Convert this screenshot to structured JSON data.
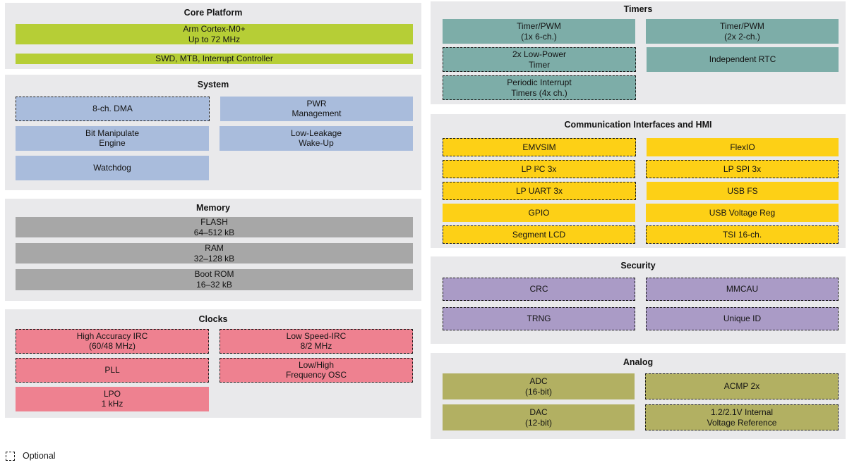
{
  "palette": {
    "green": "#b6ce36",
    "blue": "#a9bcdc",
    "gray": "#a7a7a7",
    "pink": "#ee8190",
    "teal": "#7dada8",
    "yellow": "#fdd016",
    "purple": "#aa9bc6",
    "olive": "#b2b062",
    "panel_bg": "#e9e9eb",
    "dash_border": "#1c1c1c"
  },
  "legend": {
    "label": "Optional"
  },
  "sections": {
    "core": {
      "title": "Core Platform",
      "blocks": [
        {
          "label": "Arm Cortex-M0+\nUp to 72 MHz",
          "optional": false
        },
        {
          "label": "SWD, MTB, Interrupt Controller",
          "optional": false
        }
      ]
    },
    "system": {
      "title": "System",
      "rows": [
        [
          {
            "label": "8-ch. DMA",
            "optional": true
          },
          {
            "label": "PWR\nManagement",
            "optional": false
          }
        ],
        [
          {
            "label": "Bit Manipulate\nEngine",
            "optional": false
          },
          {
            "label": "Low-Leakage\nWake-Up",
            "optional": false
          }
        ],
        [
          {
            "label": "Watchdog",
            "optional": false
          },
          null
        ]
      ]
    },
    "memory": {
      "title": "Memory",
      "blocks": [
        {
          "label": "FLASH\n64–512 kB",
          "optional": false
        },
        {
          "label": "RAM\n32–128 kB",
          "optional": false
        },
        {
          "label": "Boot ROM\n16–32 kB",
          "optional": false
        }
      ]
    },
    "clocks": {
      "title": "Clocks",
      "rows": [
        [
          {
            "label": "High Accuracy IRC\n(60/48 MHz)",
            "optional": true
          },
          {
            "label": "Low Speed-IRC\n8/2 MHz",
            "optional": true
          }
        ],
        [
          {
            "label": "PLL",
            "optional": true
          },
          {
            "label": "Low/High\nFrequency OSC",
            "optional": true
          }
        ],
        [
          {
            "label": "LPO\n1 kHz",
            "optional": false
          },
          null
        ]
      ]
    },
    "timers": {
      "title": "Timers",
      "rows": [
        [
          {
            "label": "Timer/PWM\n(1x 6-ch.)",
            "optional": false
          },
          {
            "label": "Timer/PWM\n(2x 2-ch.)",
            "optional": false
          }
        ],
        [
          {
            "label": "2x Low-Power\nTimer",
            "optional": true
          },
          {
            "label": "Independent RTC",
            "optional": false
          }
        ],
        [
          {
            "label": "Periodic Interrupt\nTimers (4x ch.)",
            "optional": true
          },
          null
        ]
      ]
    },
    "comm": {
      "title": "Communication Interfaces and HMI",
      "rows": [
        [
          {
            "label": "EMVSIM",
            "optional": true
          },
          {
            "label": "FlexIO",
            "optional": false
          }
        ],
        [
          {
            "label": "LP I²C 3x",
            "optional": true
          },
          {
            "label": "LP SPI 3x",
            "optional": true
          }
        ],
        [
          {
            "label": "LP UART 3x",
            "optional": true
          },
          {
            "label": "USB FS",
            "optional": false
          }
        ],
        [
          {
            "label": "GPIO",
            "optional": false
          },
          {
            "label": "USB Voltage Reg",
            "optional": false
          }
        ],
        [
          {
            "label": "Segment LCD",
            "optional": true
          },
          {
            "label": "TSI 16-ch.",
            "optional": true
          }
        ]
      ]
    },
    "security": {
      "title": "Security",
      "rows": [
        [
          {
            "label": "CRC",
            "optional": true
          },
          {
            "label": "MMCAU",
            "optional": true
          }
        ],
        [
          {
            "label": "TRNG",
            "optional": true
          },
          {
            "label": "Unique ID",
            "optional": true
          }
        ]
      ]
    },
    "analog": {
      "title": "Analog",
      "rows": [
        [
          {
            "label": "ADC\n(16-bit)",
            "optional": false
          },
          {
            "label": "ACMP 2x",
            "optional": true
          }
        ],
        [
          {
            "label": "DAC\n(12-bit)",
            "optional": false
          },
          {
            "label": "1.2/2.1V Internal\nVoltage Reference",
            "optional": true
          }
        ]
      ]
    }
  }
}
